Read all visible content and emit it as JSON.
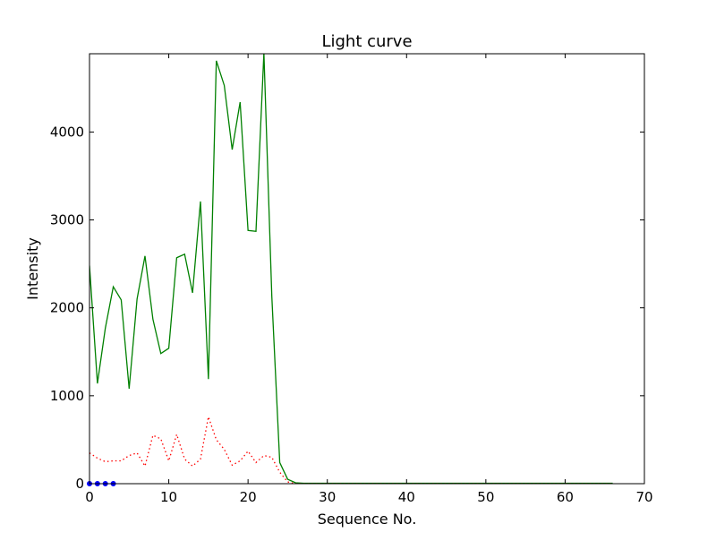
{
  "chart_data": {
    "type": "line",
    "title": "Light curve",
    "xlabel": "Sequence No.",
    "ylabel": "Intensity",
    "xlim": [
      0,
      70
    ],
    "ylim": [
      0,
      4890
    ],
    "xticks": [
      0,
      10,
      20,
      30,
      40,
      50,
      60,
      70
    ],
    "yticks": [
      0,
      1000,
      2000,
      3000,
      4000
    ],
    "grid": false,
    "legend": "none",
    "series": [
      {
        "color": "#008000",
        "style": "solid",
        "x": [
          0,
          1,
          2,
          3,
          4,
          5,
          6,
          7,
          8,
          9,
          10,
          11,
          12,
          13,
          14,
          15,
          16,
          17,
          18,
          19,
          20,
          21,
          22,
          23,
          24,
          25,
          26,
          27,
          28,
          29,
          30,
          31,
          32,
          33,
          34,
          35,
          36,
          37,
          38,
          39,
          40,
          41,
          42,
          43,
          44,
          45,
          46,
          47,
          48,
          49,
          50,
          51,
          52,
          53,
          54,
          55,
          56,
          57,
          58,
          59,
          60,
          61,
          62,
          63,
          64,
          65,
          66
        ],
        "y": [
          2480,
          1140,
          1770,
          2240,
          2090,
          1080,
          2100,
          2590,
          1870,
          1480,
          1540,
          2570,
          2610,
          2170,
          3210,
          1190,
          4810,
          4530,
          3800,
          4340,
          2880,
          2870,
          4900,
          2130,
          240,
          50,
          10,
          5,
          5,
          5,
          5,
          5,
          5,
          5,
          5,
          5,
          5,
          5,
          5,
          5,
          5,
          5,
          5,
          5,
          5,
          5,
          5,
          5,
          5,
          5,
          5,
          5,
          5,
          5,
          5,
          5,
          5,
          5,
          5,
          5,
          5,
          5,
          5,
          5,
          5,
          5,
          5
        ]
      },
      {
        "color": "#ff0000",
        "style": "dotted",
        "x": [
          0,
          1,
          2,
          3,
          4,
          5,
          6,
          7,
          8,
          9,
          10,
          11,
          12,
          13,
          14,
          15,
          16,
          17,
          18,
          19,
          20,
          21,
          22,
          23,
          24,
          25,
          26,
          27,
          28,
          29,
          30,
          31,
          32,
          33,
          34,
          35,
          36,
          37,
          38,
          39,
          40,
          41,
          42,
          43,
          44,
          45,
          46,
          47,
          48,
          49,
          50,
          51,
          52,
          53,
          54,
          55,
          56,
          57,
          58,
          59,
          60,
          61,
          62,
          63,
          64,
          65,
          66
        ],
        "y": [
          350,
          290,
          250,
          260,
          260,
          320,
          350,
          200,
          550,
          510,
          260,
          560,
          280,
          200,
          280,
          760,
          500,
          390,
          210,
          260,
          370,
          240,
          320,
          300,
          130,
          20,
          0,
          0,
          0,
          0,
          0,
          0,
          0,
          0,
          0,
          0,
          0,
          0,
          0,
          0,
          0,
          0,
          0,
          0,
          0,
          0,
          0,
          0,
          0,
          0,
          0,
          0,
          0,
          0,
          0,
          0,
          0,
          0,
          0,
          0,
          0,
          0,
          0,
          0,
          0,
          0,
          0
        ]
      },
      {
        "color": "#0000ff",
        "style": "markers",
        "x": [
          0,
          1,
          2,
          3
        ],
        "y": [
          0,
          0,
          0,
          0
        ]
      }
    ]
  }
}
